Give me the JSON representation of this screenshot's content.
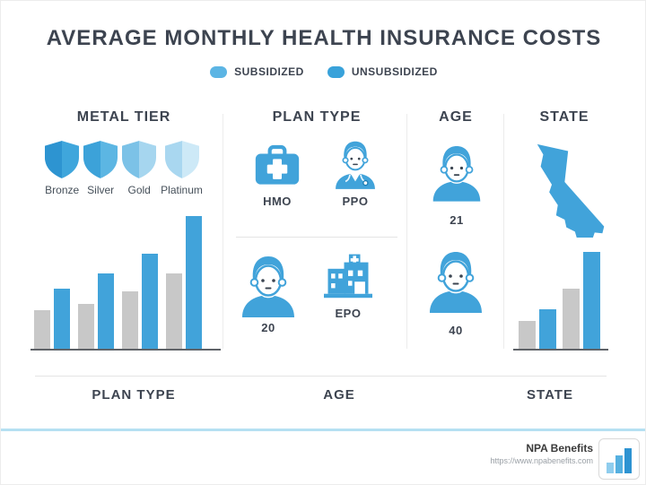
{
  "title": "AVERAGE MONTHLY HEALTH INSURANCE COSTS",
  "colors": {
    "brand_blue": "#41a3da",
    "bar_gray": "#c8c8c8",
    "accent_band": "#b5e0f2",
    "axis": "#5f6368"
  },
  "legend": {
    "subsidized": {
      "label": "SUBSIDIZED",
      "color": "#5cb5e4"
    },
    "unsubsidized": {
      "label": "UNSUBSIDIZED",
      "color": "#39a2da"
    }
  },
  "sections": {
    "metal_tier": {
      "header": "METAL TIER",
      "tiers": [
        {
          "label": "Bronze",
          "icon": "shield-icon",
          "color_dark": "#2d94d1",
          "color_light": "#3fa6dc"
        },
        {
          "label": "Silver",
          "icon": "shield-icon",
          "color_dark": "#3ca2d9",
          "color_light": "#5cb6e3"
        },
        {
          "label": "Gold",
          "icon": "shield-icon",
          "color_dark": "#7cc2e7",
          "color_light": "#a6d6ef"
        },
        {
          "label": "Platinum",
          "icon": "shield-icon",
          "color_dark": "#a9d7f0",
          "color_light": "#cde9f7"
        }
      ]
    },
    "plan_type": {
      "header": "PLAN TYPE",
      "hmo": {
        "label": "HMO",
        "icon": "first-aid-kit-icon"
      },
      "ppo": {
        "label": "PPO",
        "icon": "doctor-icon"
      },
      "age20": {
        "label": "20",
        "icon": "person-icon"
      },
      "epo": {
        "label": "EPO",
        "icon": "hospital-building-icon"
      }
    },
    "age": {
      "header": "AGE",
      "age21": {
        "label": "21",
        "icon": "person-icon"
      },
      "age40": {
        "label": "40",
        "icon": "person-icon"
      }
    },
    "state": {
      "header": "STATE",
      "icon": "california-map"
    }
  },
  "bottom_labels": {
    "plan_type": "PLAN TYPE",
    "age": "AGE",
    "state": "STATE"
  },
  "footer": {
    "brand": "NPA Benefits",
    "url": "https://www.npabenefits.com",
    "logo_icon": "bar-chart-logo-icon"
  },
  "chart_data": [
    {
      "id": "metal_tier_bars",
      "type": "bar",
      "categories": [
        "Bronze",
        "Silver",
        "Gold",
        "Platinum"
      ],
      "series": [
        {
          "name": "Subsidized",
          "color": "#c8c8c8",
          "values": [
            43,
            50,
            64,
            84
          ]
        },
        {
          "name": "Unsubsidized",
          "color": "#41a3da",
          "values": [
            67,
            84,
            106,
            148
          ]
        }
      ],
      "title": "",
      "xlabel": "",
      "ylabel": "",
      "notes": "no numeric axis shown; values are relative bar heights in px",
      "legend_position": "top",
      "grid": false
    },
    {
      "id": "state_bars",
      "type": "bar",
      "categories": [
        "",
        ""
      ],
      "series": [
        {
          "name": "Subsidized",
          "color": "#c8c8c8",
          "values": [
            31,
            67
          ]
        },
        {
          "name": "Unsubsidized",
          "color": "#41a3da",
          "values": [
            44,
            108
          ]
        }
      ],
      "title": "",
      "xlabel": "",
      "ylabel": "",
      "notes": "no numeric axis shown; values are relative bar heights in px",
      "legend_position": "top",
      "grid": false
    }
  ]
}
